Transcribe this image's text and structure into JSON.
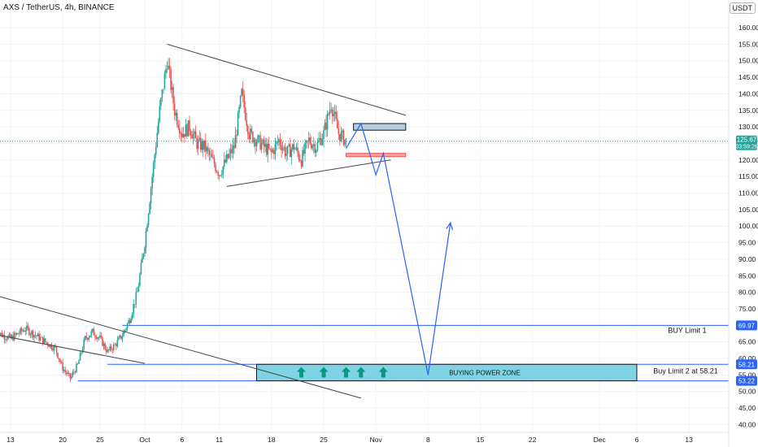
{
  "header": {
    "symbol": "AXS / TetherUS",
    "interval": "4h",
    "exchange": "BINANCE",
    "sep1": ", ",
    "sep2": ", "
  },
  "currency_label": "USDT",
  "colors": {
    "up": "#26a69a",
    "down": "#ef5350",
    "trendline": "#434651",
    "projection": "#2962ff",
    "level_line": "#2962ff",
    "zone_fill": "#7fd3e3",
    "resistance_box": "#b7d0e0",
    "support_box": "#f4a3a3",
    "arrow": "#089981",
    "price_tag": "#26a69a",
    "level_tag": "#2962ff",
    "axis_text": "#131722",
    "background": "#ffffff"
  },
  "chart_data": {
    "type": "candlestick",
    "title": "AXS / TetherUS, 4h, BINANCE",
    "ylim": [
      37.5,
      164
    ],
    "y_ticks": [
      40,
      45,
      50,
      55,
      60,
      65,
      70,
      75,
      80,
      85,
      90,
      95,
      100,
      105,
      110,
      115,
      120,
      125,
      130,
      135,
      140,
      145,
      150,
      155,
      160
    ],
    "y_tick_labels": [
      "40.00",
      "45.00",
      "50.00",
      "55.00",
      "60.00",
      "65.00",
      "70.00",
      "75.00",
      "80.00",
      "85.00",
      "90.00",
      "95.00",
      "100.00",
      "105.00",
      "110.00",
      "115.00",
      "120.00",
      "125.00",
      "130.00",
      "135.00",
      "140.00",
      "145.00",
      "150.00",
      "155.00",
      "160.00"
    ],
    "x_ticks": [
      {
        "label": "13",
        "date": "2021-09-13"
      },
      {
        "label": "20",
        "date": "2021-09-20"
      },
      {
        "label": "25",
        "date": "2021-09-25"
      },
      {
        "label": "Oct",
        "date": "2021-10-01"
      },
      {
        "label": "6",
        "date": "2021-10-06"
      },
      {
        "label": "11",
        "date": "2021-10-11"
      },
      {
        "label": "18",
        "date": "2021-10-18"
      },
      {
        "label": "25",
        "date": "2021-10-25"
      },
      {
        "label": "Nov",
        "date": "2021-11-01"
      },
      {
        "label": "8",
        "date": "2021-11-08"
      },
      {
        "label": "15",
        "date": "2021-11-15"
      },
      {
        "label": "22",
        "date": "2021-11-22"
      },
      {
        "label": "Dec",
        "date": "2021-12-01"
      },
      {
        "label": "6",
        "date": "2021-12-06"
      },
      {
        "label": "13",
        "date": "2021-12-13"
      }
    ],
    "price_path": [
      {
        "date": "2021-09-11",
        "close": 68
      },
      {
        "date": "2021-09-13",
        "close": 66
      },
      {
        "date": "2021-09-15",
        "close": 69
      },
      {
        "date": "2021-09-17",
        "close": 66
      },
      {
        "date": "2021-09-19",
        "close": 63
      },
      {
        "date": "2021-09-20",
        "close": 57
      },
      {
        "date": "2021-09-21",
        "close": 54
      },
      {
        "date": "2021-09-22",
        "close": 58
      },
      {
        "date": "2021-09-23",
        "close": 66
      },
      {
        "date": "2021-09-24",
        "close": 68
      },
      {
        "date": "2021-09-25",
        "close": 66
      },
      {
        "date": "2021-09-26",
        "close": 62
      },
      {
        "date": "2021-09-27",
        "close": 64
      },
      {
        "date": "2021-09-28",
        "close": 67
      },
      {
        "date": "2021-09-29",
        "close": 72
      },
      {
        "date": "2021-09-30",
        "close": 80
      },
      {
        "date": "2021-10-01",
        "close": 95
      },
      {
        "date": "2021-10-02",
        "close": 115
      },
      {
        "date": "2021-10-03",
        "close": 135
      },
      {
        "date": "2021-10-04",
        "close": 150
      },
      {
        "date": "2021-10-05",
        "close": 135
      },
      {
        "date": "2021-10-06",
        "close": 128
      },
      {
        "date": "2021-10-07",
        "close": 130
      },
      {
        "date": "2021-10-08",
        "close": 125
      },
      {
        "date": "2021-10-09",
        "close": 124
      },
      {
        "date": "2021-10-10",
        "close": 120
      },
      {
        "date": "2021-10-11",
        "close": 116
      },
      {
        "date": "2021-10-12",
        "close": 120
      },
      {
        "date": "2021-10-13",
        "close": 124
      },
      {
        "date": "2021-10-14",
        "close": 140
      },
      {
        "date": "2021-10-15",
        "close": 128
      },
      {
        "date": "2021-10-16",
        "close": 126
      },
      {
        "date": "2021-10-17",
        "close": 124
      },
      {
        "date": "2021-10-18",
        "close": 122
      },
      {
        "date": "2021-10-19",
        "close": 126
      },
      {
        "date": "2021-10-20",
        "close": 122
      },
      {
        "date": "2021-10-21",
        "close": 124
      },
      {
        "date": "2021-10-22",
        "close": 120
      },
      {
        "date": "2021-10-23",
        "close": 126
      },
      {
        "date": "2021-10-24",
        "close": 124
      },
      {
        "date": "2021-10-25",
        "close": 128
      },
      {
        "date": "2021-10-26",
        "close": 137
      },
      {
        "date": "2021-10-27",
        "close": 128
      },
      {
        "date": "2021-10-28",
        "close": 125.67
      }
    ],
    "last_price": {
      "value": 125.67,
      "label": "125.67",
      "countdown": "03:59:26"
    },
    "annotations": {
      "trendlines": [
        {
          "name": "triangle-upper",
          "from": {
            "date": "2021-10-04",
            "price": 155
          },
          "to": {
            "date": "2021-11-05",
            "price": 133.5
          }
        },
        {
          "name": "triangle-lower",
          "from": {
            "date": "2021-10-12",
            "price": 112
          },
          "to": {
            "date": "2021-11-03",
            "price": 120
          }
        },
        {
          "name": "downtrend-long",
          "from": {
            "date": "2021-08-31",
            "price": 86
          },
          "to": {
            "date": "2021-10-30",
            "price": 48
          }
        },
        {
          "name": "downtrend-short",
          "from": {
            "date": "2021-08-31",
            "price": 72
          },
          "to": {
            "date": "2021-10-01",
            "price": 58.5
          }
        }
      ],
      "projection_path": [
        {
          "date": "2021-10-28",
          "price": 123.5
        },
        {
          "date": "2021-10-30",
          "price": 131
        },
        {
          "date": "2021-11-01",
          "price": 115.5
        },
        {
          "date": "2021-11-02",
          "price": 122
        },
        {
          "date": "2021-11-08",
          "price": 55
        },
        {
          "date": "2021-11-11",
          "price": 101
        }
      ],
      "boxes": [
        {
          "name": "resistance-box",
          "from": "2021-10-29",
          "to": "2021-11-05",
          "top": 131,
          "bottom": 129
        },
        {
          "name": "support-box",
          "from": "2021-10-28",
          "to": "2021-11-05",
          "top": 122,
          "bottom": 121
        }
      ],
      "zone": {
        "label": "BUYING POWER ZONE",
        "from": "2021-10-16",
        "to": "2021-12-06",
        "top": 58.21,
        "bottom": 53.22
      },
      "arrows": [
        {
          "date": "2021-10-22"
        },
        {
          "date": "2021-10-25"
        },
        {
          "date": "2021-10-28"
        },
        {
          "date": "2021-10-30"
        },
        {
          "date": "2021-11-02"
        }
      ],
      "levels": [
        {
          "name": "buy-limit-1",
          "price": 69.97,
          "tag": "69.97",
          "text": "BUY Limit 1",
          "start": "2021-09-28"
        },
        {
          "name": "buy-limit-2",
          "price": 58.21,
          "tag": "58.21",
          "text": "Buy Limit 2 at 58.21",
          "start": "2021-09-26"
        },
        {
          "name": "zone-bottom",
          "price": 53.22,
          "tag": "53.22",
          "text": "",
          "start": "2021-09-22"
        }
      ]
    }
  }
}
